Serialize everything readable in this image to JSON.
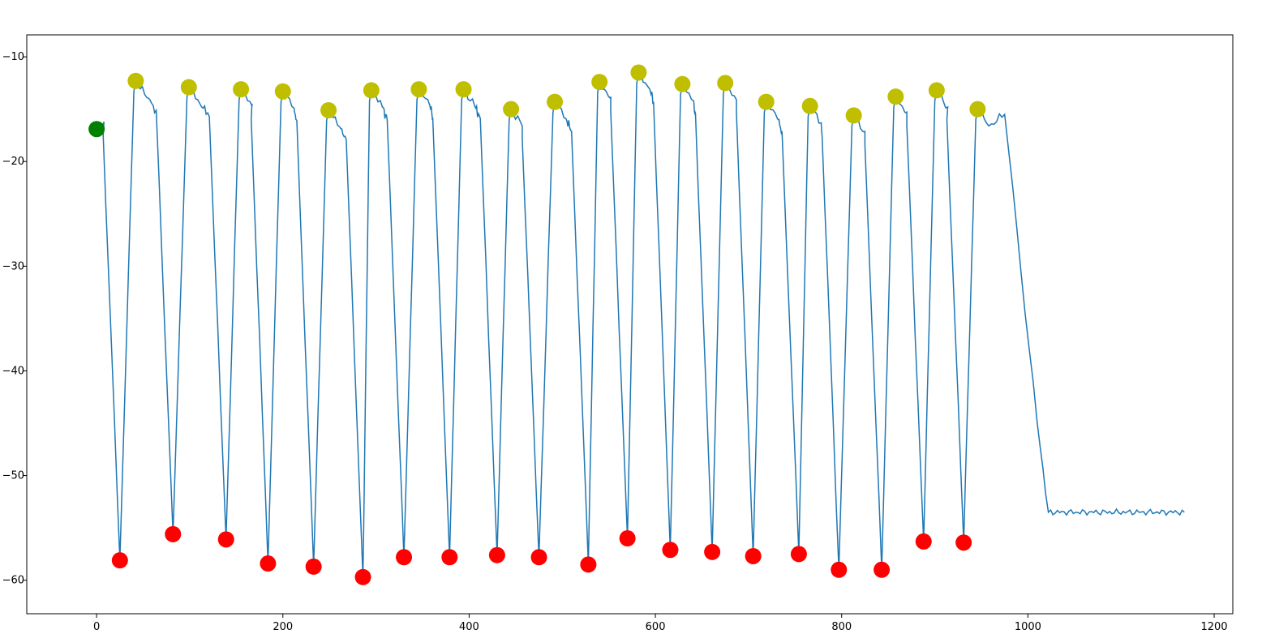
{
  "chart_data": {
    "type": "line",
    "title": "",
    "xlabel": "",
    "ylabel": "",
    "xlim": [
      -75,
      1220
    ],
    "ylim": [
      -63.2,
      -7.9
    ],
    "xticks": [
      0,
      200,
      400,
      600,
      800,
      1000,
      1200
    ],
    "yticks": [
      -60,
      -50,
      -40,
      -30,
      -20,
      -10
    ],
    "grid": false,
    "legend": "none",
    "line_color": "#1f77b4",
    "start_marker": {
      "x": 0,
      "y": -16.9,
      "color": "#008000"
    },
    "peaks": {
      "color": "#bfbf00",
      "x": [
        42,
        99,
        155,
        200,
        249,
        295,
        346,
        394,
        445,
        492,
        540,
        582,
        629,
        675,
        719,
        766,
        813,
        858,
        902,
        946
      ],
      "y": [
        -12.3,
        -12.9,
        -13.1,
        -13.3,
        -15.1,
        -13.2,
        -13.1,
        -13.1,
        -15.0,
        -14.3,
        -12.4,
        -11.5,
        -12.6,
        -12.5,
        -14.3,
        -14.7,
        -15.6,
        -13.8,
        -13.2,
        -15.0
      ]
    },
    "troughs": {
      "color": "#ff0000",
      "x": [
        25,
        82,
        139,
        184,
        233,
        286,
        330,
        379,
        430,
        475,
        528,
        570,
        616,
        661,
        705,
        754,
        797,
        843,
        888,
        931
      ],
      "y": [
        -58.1,
        -55.6,
        -56.1,
        -58.4,
        -58.7,
        -59.7,
        -57.8,
        -57.8,
        -57.6,
        -57.8,
        -58.5,
        -56.0,
        -57.1,
        -57.3,
        -57.7,
        -57.5,
        -59.0,
        -59.0,
        -56.3,
        -56.4
      ]
    },
    "plateau": {
      "x_end": 1168,
      "y": -53.5
    }
  }
}
